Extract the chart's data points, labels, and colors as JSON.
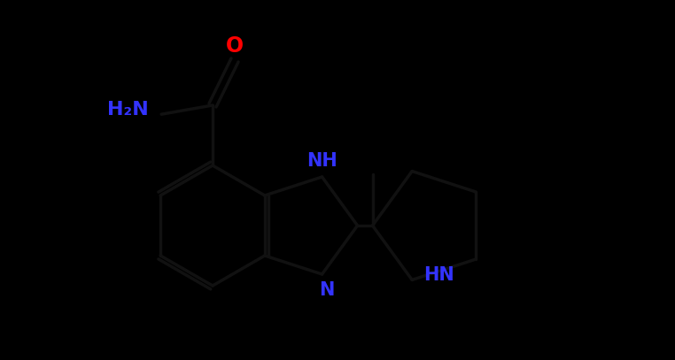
{
  "background_color": "#000000",
  "bond_color": "#111111",
  "atom_colors": {
    "O": "#ff0000",
    "N": "#3333ff",
    "C": "#111111",
    "H": "#111111"
  },
  "figsize": [
    7.62,
    4.07
  ],
  "dpi": 100,
  "xlim": [
    0,
    7.62
  ],
  "ylim": [
    0,
    4.07
  ]
}
